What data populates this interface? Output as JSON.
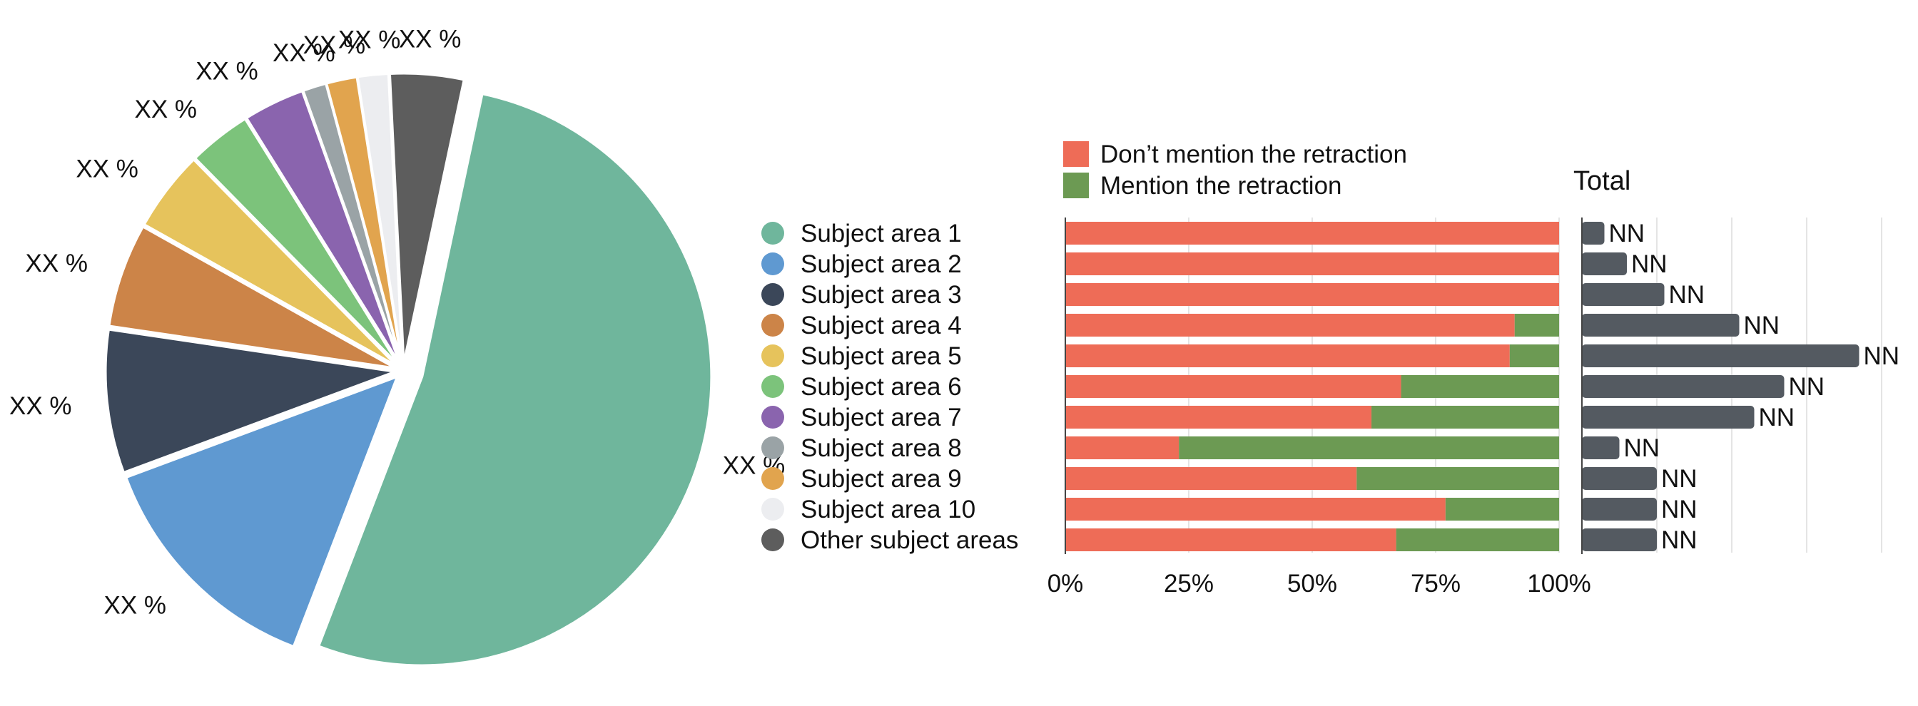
{
  "colors": {
    "dont_mention": "#ee6c57",
    "mention": "#6c9a53",
    "total_bar": "#545a61",
    "grid": "#e4e4e4",
    "axis": "#444444"
  },
  "chart_data": [
    {
      "type": "pie",
      "slice_label": "XX %",
      "slices": [
        {
          "name": "Subject area 1",
          "value": 52.5,
          "color": "#6fb69c"
        },
        {
          "name": "Subject area 2",
          "value": 13.5,
          "color": "#5f99d1"
        },
        {
          "name": "Subject area 3",
          "value": 8.0,
          "color": "#3b4759"
        },
        {
          "name": "Subject area 4",
          "value": 5.8,
          "color": "#cc8448"
        },
        {
          "name": "Subject area 5",
          "value": 4.5,
          "color": "#e6c35c"
        },
        {
          "name": "Subject area 6",
          "value": 3.5,
          "color": "#7cc37b"
        },
        {
          "name": "Subject area 7",
          "value": 3.4,
          "color": "#8a64ae"
        },
        {
          "name": "Subject area 8",
          "value": 1.3,
          "color": "#9aa3a6"
        },
        {
          "name": "Subject area 9",
          "value": 1.7,
          "color": "#e1a44e"
        },
        {
          "name": "Subject area 10",
          "value": 1.7,
          "color": "#ecedf0"
        },
        {
          "name": "Other subject areas",
          "value": 4.1,
          "color": "#5d5d5d"
        }
      ]
    },
    {
      "type": "bar",
      "orientation": "horizontal",
      "stacked": true,
      "categories": [
        "Subject area 1",
        "Subject area 2",
        "Subject area 3",
        "Subject area 4",
        "Subject area 5",
        "Subject area 6",
        "Subject area 7",
        "Subject area 8",
        "Subject area 9",
        "Subject area 10",
        "Other subject areas"
      ],
      "series": [
        {
          "name": "Don’t mention the retraction",
          "values": [
            100,
            100,
            100,
            91,
            90,
            68,
            62,
            23,
            59,
            77,
            67
          ]
        },
        {
          "name": "Mention the retraction",
          "values": [
            0,
            0,
            0,
            9,
            10,
            32,
            38,
            77,
            41,
            23,
            33
          ]
        }
      ],
      "xlim": [
        0,
        100
      ],
      "ticks": [
        "0%",
        "25%",
        "50%",
        "75%",
        "100%"
      ],
      "legend": "top-left"
    },
    {
      "type": "bar",
      "orientation": "horizontal",
      "title": "Total",
      "categories": [
        "Subject area 1",
        "Subject area 2",
        "Subject area 3",
        "Subject area 4",
        "Subject area 5",
        "Subject area 6",
        "Subject area 7",
        "Subject area 8",
        "Subject area 9",
        "Subject area 10",
        "Other subject areas"
      ],
      "values": [
        6,
        12,
        22,
        42,
        74,
        54,
        46,
        10,
        20,
        20,
        20
      ],
      "value_label": "NN",
      "xlim": [
        0,
        80
      ]
    }
  ]
}
